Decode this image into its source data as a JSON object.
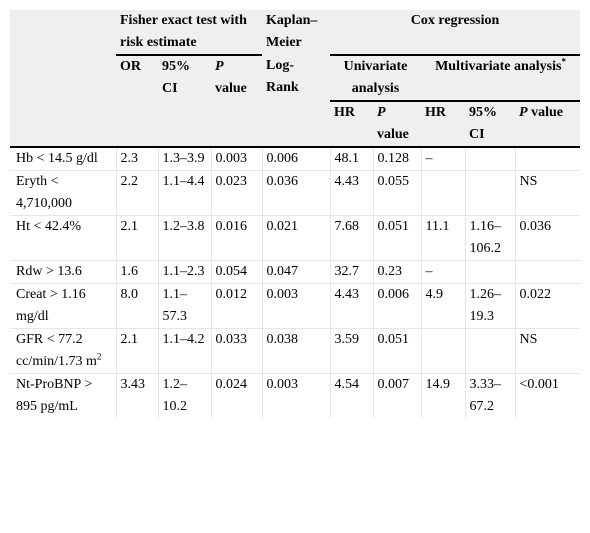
{
  "header": {
    "fisher": "Fisher exact test with risk estimate",
    "kaplan": "Kaplan–Meier",
    "cox": "Cox regression",
    "or": "OR",
    "ci95": "95% CI",
    "p_letter": "P",
    "value_word": "value",
    "logrank": "Log-Rank",
    "univariate": "Univariate analysis",
    "multivariate": "Multivariate analysis",
    "footnote_mark": "*",
    "hr": "HR",
    "p_value_inline": "value"
  },
  "rows": [
    {
      "label": "Hb < 14.5 g/dl",
      "or": "2.3",
      "ci": "1.3–3.9",
      "p": "0.003",
      "logrank": "0.006",
      "uhr": "48.1",
      "up": "0.128",
      "mhr": "–",
      "mci": "",
      "mp": ""
    },
    {
      "label": "Eryth < 4,710,000",
      "or": "2.2",
      "ci": "1.1–4.4",
      "p": "0.023",
      "logrank": "0.036",
      "uhr": "4.43",
      "up": "0.055",
      "mhr": "",
      "mci": "",
      "mp": "NS"
    },
    {
      "label": "Ht < 42.4%",
      "or": "2.1",
      "ci": "1.2–3.8",
      "p": "0.016",
      "logrank": "0.021",
      "uhr": "7.68",
      "up": "0.051",
      "mhr": "11.1",
      "mci": "1.16–106.2",
      "mp": "0.036"
    },
    {
      "label": "Rdw > 13.6",
      "or": "1.6",
      "ci": "1.1–2.3",
      "p": "0.054",
      "logrank": "0.047",
      "uhr": "32.7",
      "up": "0.23",
      "mhr": "–",
      "mci": "",
      "mp": ""
    },
    {
      "label": "Creat > 1.16 mg/dl",
      "or": "8.0",
      "ci": "1.1–57.3",
      "p": "0.012",
      "logrank": "0.003",
      "uhr": "4.43",
      "up": "0.006",
      "mhr": "4.9",
      "mci": "1.26–19.3",
      "mp": "0.022"
    },
    {
      "label": "GFR < 77.2 cc/min/1.73 m",
      "label_sup": "2",
      "or": "2.1",
      "ci": "1.1–4.2",
      "p": "0.033",
      "logrank": "0.038",
      "uhr": "3.59",
      "up": "0.051",
      "mhr": "",
      "mci": "",
      "mp": "NS"
    },
    {
      "label": "Nt-ProBNP > 895 pg/mL",
      "or": "3.43",
      "ci": "1.2–10.2",
      "p": "0.024",
      "logrank": "0.003",
      "uhr": "4.54",
      "up": "0.007",
      "mhr": "14.9",
      "mci": "3.33–67.2",
      "mp": "<0.001"
    }
  ]
}
